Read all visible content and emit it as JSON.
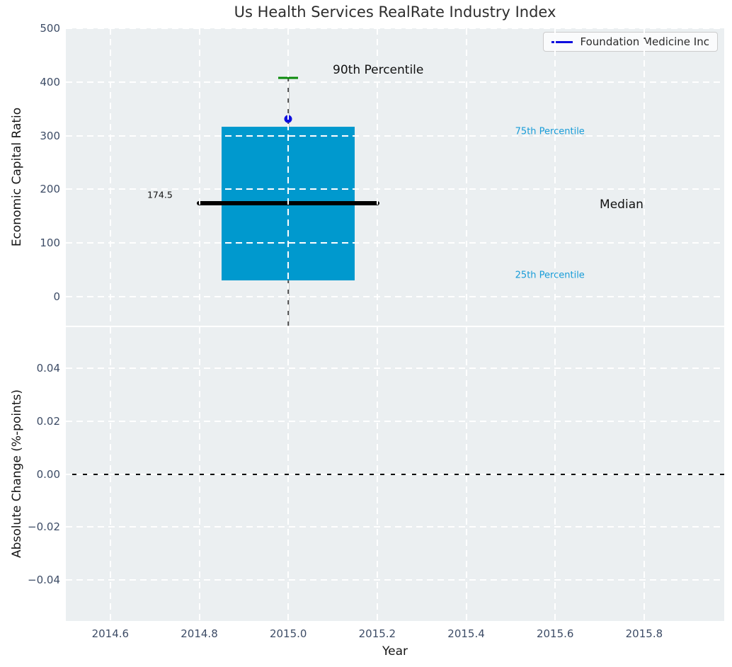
{
  "title": "Us Health Services RealRate Industry Index",
  "xlabel": "Year",
  "xticks": [
    {
      "v": 2014.6,
      "label": "2014.6"
    },
    {
      "v": 2014.8,
      "label": "2014.8"
    },
    {
      "v": 2015.0,
      "label": "2015.0"
    },
    {
      "v": 2015.2,
      "label": "2015.2"
    },
    {
      "v": 2015.4,
      "label": "2015.4"
    },
    {
      "v": 2015.6,
      "label": "2015.6"
    },
    {
      "v": 2015.8,
      "label": "2015.8"
    }
  ],
  "colors": {
    "axes_bg": "#ebeff1",
    "grid": "#ffffff",
    "tick_label": "#3d4c66",
    "axis_label": "#151515",
    "title": "#2d2d2d",
    "box_fill": "#0099ce",
    "percentile_text": "#189cd8",
    "median_line": "#000000",
    "whisker": "#4a4a4a",
    "cap_green": "#0a8a0a",
    "point_blue": "#0d0dde",
    "zero_line": "#000000"
  },
  "chart_data": [
    {
      "type": "boxplot",
      "ylabel": "Economic Capital Ratio",
      "ylim": [
        -54,
        500
      ],
      "xlim": [
        2014.5,
        2015.98
      ],
      "grid": "white-dashed",
      "yticks": [
        {
          "v": 500,
          "label": "500"
        },
        {
          "v": 400,
          "label": "400"
        },
        {
          "v": 300,
          "label": "300"
        },
        {
          "v": 200,
          "label": "200"
        },
        {
          "v": 100,
          "label": "100"
        },
        {
          "v": 0,
          "label": "0"
        }
      ],
      "box": {
        "x": 2015.0,
        "p90": 408,
        "p75": 316,
        "median": 174.5,
        "p25": 31,
        "whisker_low": -54,
        "box_half_width": 0.15,
        "median_half_width": 0.205,
        "cap_half_width": 0.022
      },
      "company_point": {
        "name": "Foundation Medicine Inc",
        "x": 2015.0,
        "y": 331
      },
      "legend": {
        "label": "Foundation Medicine Inc",
        "position": "upper right"
      },
      "annotations": [
        {
          "text": "90th Percentile",
          "x": 2015.1,
          "y": 422,
          "color": "#111111",
          "size": 17
        },
        {
          "text": "75th Percentile",
          "x": 2015.51,
          "y": 307,
          "color": "#189cd8",
          "size": 13
        },
        {
          "text": "Median",
          "x": 2015.7,
          "y": 172,
          "color": "#111111",
          "size": 17
        },
        {
          "text": "25th Percentile",
          "x": 2015.51,
          "y": 40,
          "color": "#189cd8",
          "size": 13
        },
        {
          "text": "174.5",
          "x": 2014.683,
          "y": 190,
          "color": "#111111",
          "size": 12.5
        }
      ]
    },
    {
      "type": "line",
      "ylabel": "Absolute Change (%-points)",
      "ylim": [
        -0.0555,
        0.0555
      ],
      "xlim": [
        2014.5,
        2015.98
      ],
      "grid": "white-dashed",
      "yticks": [
        {
          "v": 0.04,
          "label": "0.04"
        },
        {
          "v": 0.02,
          "label": "0.02"
        },
        {
          "v": 0.0,
          "label": "0.00"
        },
        {
          "v": -0.02,
          "label": "−0.02"
        },
        {
          "v": -0.04,
          "label": "−0.04"
        }
      ],
      "zero_line": 0.0,
      "series": []
    }
  ]
}
